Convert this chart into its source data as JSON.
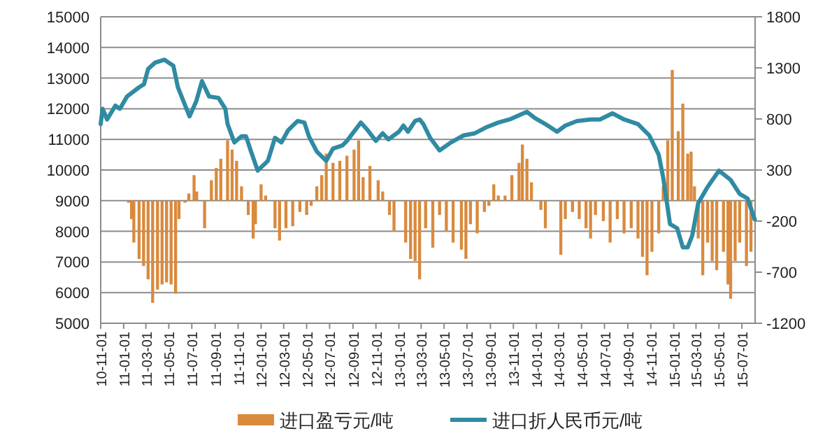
{
  "chart_data": {
    "type": "bar",
    "legend": "bottom",
    "grid": "y",
    "xlim": [
      "2010-11-01",
      "2015-08-05"
    ],
    "xticks": [
      {
        "value": "2010-11-01",
        "label": "10-11-01"
      },
      {
        "value": "2011-01-01",
        "label": "11-01-01"
      },
      {
        "value": "2011-03-01",
        "label": "11-03-01"
      },
      {
        "value": "2011-05-01",
        "label": "11-05-01"
      },
      {
        "value": "2011-07-01",
        "label": "11-07-01"
      },
      {
        "value": "2011-09-01",
        "label": "11-09-01"
      },
      {
        "value": "2011-11-01",
        "label": "11-11-01"
      },
      {
        "value": "2012-01-01",
        "label": "12-01-01"
      },
      {
        "value": "2012-03-01",
        "label": "12-03-01"
      },
      {
        "value": "2012-05-01",
        "label": "12-05-01"
      },
      {
        "value": "2012-07-01",
        "label": "12-07-01"
      },
      {
        "value": "2012-09-01",
        "label": "12-09-01"
      },
      {
        "value": "2012-11-01",
        "label": "12-11-01"
      },
      {
        "value": "2013-01-01",
        "label": "13-01-01"
      },
      {
        "value": "2013-03-01",
        "label": "13-03-01"
      },
      {
        "value": "2013-05-01",
        "label": "13-05-01"
      },
      {
        "value": "2013-07-01",
        "label": "13-07-01"
      },
      {
        "value": "2013-09-01",
        "label": "13-09-01"
      },
      {
        "value": "2013-11-01",
        "label": "13-11-01"
      },
      {
        "value": "2014-01-01",
        "label": "14-01-01"
      },
      {
        "value": "2014-03-01",
        "label": "14-03-01"
      },
      {
        "value": "2014-05-01",
        "label": "14-05-01"
      },
      {
        "value": "2014-07-01",
        "label": "14-07-01"
      },
      {
        "value": "2014-09-01",
        "label": "14-09-01"
      },
      {
        "value": "2014-11-01",
        "label": "14-11-01"
      },
      {
        "value": "2015-01-01",
        "label": "15-01-01"
      },
      {
        "value": "2015-03-01",
        "label": "15-03-01"
      },
      {
        "value": "2015-05-01",
        "label": "15-05-01"
      },
      {
        "value": "2015-07-01",
        "label": "15-07-01"
      }
    ],
    "ylim": [
      5000,
      15000
    ],
    "yticks": [
      5000,
      6000,
      7000,
      8000,
      9000,
      10000,
      11000,
      12000,
      13000,
      14000,
      15000
    ],
    "y2lim": [
      -1200,
      1800
    ],
    "y2ticks": [
      -1200,
      -700,
      -200,
      300,
      800,
      1300,
      1800
    ],
    "series": [
      {
        "name": "进口盈亏元/吨",
        "axis": "y2",
        "color": "#d98a3d",
        "x": [
          "2011-01-14",
          "2011-01-22",
          "2011-01-28",
          "2011-02-11",
          "2011-02-23",
          "2011-03-07",
          "2011-03-19",
          "2011-04-01",
          "2011-04-13",
          "2011-04-25",
          "2011-05-07",
          "2011-05-19",
          "2011-05-28",
          "2011-06-13",
          "2011-06-23",
          "2011-07-07",
          "2011-07-14",
          "2011-08-04",
          "2011-08-22",
          "2011-09-04",
          "2011-09-16",
          "2011-10-04",
          "2011-10-16",
          "2011-10-28",
          "2011-11-10",
          "2011-11-28",
          "2011-12-11",
          "2011-12-17",
          "2012-01-01",
          "2012-01-13",
          "2012-02-07",
          "2012-02-19",
          "2012-03-07",
          "2012-03-25",
          "2012-04-13",
          "2012-05-01",
          "2012-05-13",
          "2012-05-28",
          "2012-06-10",
          "2012-06-22",
          "2012-07-10",
          "2012-07-28",
          "2012-08-16",
          "2012-09-04",
          "2012-09-16",
          "2012-09-28",
          "2012-10-16",
          "2012-11-07",
          "2012-11-19",
          "2012-12-07",
          "2012-12-19",
          "2013-01-19",
          "2013-02-01",
          "2013-02-13",
          "2013-02-25",
          "2013-03-13",
          "2013-04-01",
          "2013-04-19",
          "2013-05-07",
          "2013-05-25",
          "2013-06-16",
          "2013-06-28",
          "2013-07-10",
          "2013-07-28",
          "2013-08-16",
          "2013-08-28",
          "2013-09-10",
          "2013-09-22",
          "2013-10-10",
          "2013-10-28",
          "2013-11-16",
          "2013-11-25",
          "2013-12-07",
          "2013-12-19",
          "2014-01-13",
          "2014-01-25",
          "2014-03-07",
          "2014-03-19",
          "2014-04-07",
          "2014-04-25",
          "2014-05-13",
          "2014-05-25",
          "2014-06-07",
          "2014-06-28",
          "2014-07-16",
          "2014-08-04",
          "2014-08-22",
          "2014-09-10",
          "2014-09-28",
          "2014-10-10",
          "2014-10-22",
          "2014-11-04",
          "2014-11-22",
          "2014-12-04",
          "2014-12-16",
          "2014-12-28",
          "2015-01-13",
          "2015-01-25",
          "2015-02-07",
          "2015-02-16",
          "2015-02-25",
          "2015-03-07",
          "2015-03-19",
          "2015-04-01",
          "2015-04-13",
          "2015-04-25",
          "2015-05-13",
          "2015-05-25",
          "2015-06-01",
          "2015-06-13",
          "2015-06-25",
          "2015-07-13",
          "2015-07-25"
        ],
        "values": [
          -20,
          -180,
          -410,
          -570,
          -640,
          -770,
          -1000,
          -870,
          -820,
          -800,
          -820,
          -910,
          -180,
          -20,
          70,
          250,
          90,
          -270,
          200,
          320,
          410,
          590,
          500,
          390,
          140,
          -140,
          -370,
          -230,
          160,
          50,
          -270,
          -390,
          -270,
          -250,
          -110,
          -140,
          -50,
          140,
          250,
          460,
          370,
          390,
          440,
          500,
          590,
          230,
          340,
          200,
          90,
          -140,
          -300,
          -410,
          -570,
          -590,
          -770,
          -270,
          -460,
          -140,
          -300,
          -410,
          -480,
          -570,
          -230,
          -320,
          -110,
          -50,
          160,
          50,
          50,
          250,
          370,
          550,
          410,
          180,
          -90,
          -270,
          -530,
          -180,
          -110,
          -180,
          -270,
          -370,
          -140,
          -200,
          -410,
          -180,
          -320,
          -270,
          -370,
          -550,
          -730,
          -500,
          -320,
          140,
          590,
          1280,
          680,
          950,
          460,
          480,
          140,
          -370,
          -730,
          -410,
          -590,
          -680,
          -500,
          -820,
          -960,
          -590,
          -410,
          -640,
          -500
        ]
      },
      {
        "name": "进口折人民币元/吨",
        "type": "line",
        "axis": "y",
        "color": "#2f8ba3",
        "line_style": "solid",
        "marker": "none",
        "x": [
          "2010-11-01",
          "2010-11-06",
          "2010-11-18",
          "2010-12-10",
          "2010-12-22",
          "2011-01-10",
          "2011-02-11",
          "2011-02-24",
          "2011-03-07",
          "2011-03-25",
          "2011-04-19",
          "2011-05-13",
          "2011-05-25",
          "2011-06-25",
          "2011-07-13",
          "2011-07-28",
          "2011-08-16",
          "2011-09-10",
          "2011-09-28",
          "2011-10-04",
          "2011-10-22",
          "2011-11-10",
          "2011-11-22",
          "2011-12-04",
          "2011-12-23",
          "2012-01-19",
          "2012-02-07",
          "2012-02-24",
          "2012-03-13",
          "2012-04-07",
          "2012-04-25",
          "2012-05-07",
          "2012-05-28",
          "2012-06-22",
          "2012-07-10",
          "2012-08-04",
          "2012-08-16",
          "2012-09-22",
          "2012-10-10",
          "2012-11-01",
          "2012-11-19",
          "2012-12-04",
          "2013-01-01",
          "2013-01-13",
          "2013-01-25",
          "2013-02-13",
          "2013-02-25",
          "2013-03-07",
          "2013-03-25",
          "2013-04-19",
          "2013-05-19",
          "2013-06-22",
          "2013-07-22",
          "2013-08-22",
          "2013-09-22",
          "2013-10-22",
          "2013-12-07",
          "2013-12-28",
          "2014-01-25",
          "2014-02-25",
          "2014-03-19",
          "2014-04-19",
          "2014-05-25",
          "2014-06-19",
          "2014-07-22",
          "2014-08-22",
          "2014-09-28",
          "2014-10-28",
          "2014-11-22",
          "2014-12-04",
          "2014-12-22",
          "2015-01-10",
          "2015-01-25",
          "2015-02-07",
          "2015-02-19",
          "2015-03-07",
          "2015-04-01",
          "2015-05-01",
          "2015-06-01",
          "2015-06-25",
          "2015-07-16",
          "2015-08-04"
        ],
        "values": [
          11500,
          12000,
          11650,
          12100,
          12000,
          12400,
          12700,
          12800,
          13300,
          13500,
          13600,
          13400,
          12700,
          11750,
          12250,
          12900,
          12400,
          12350,
          12000,
          11500,
          10900,
          11100,
          11100,
          10650,
          9980,
          10300,
          11050,
          10900,
          11300,
          11600,
          11550,
          11100,
          10600,
          10300,
          10700,
          10800,
          10950,
          11550,
          11300,
          10950,
          11200,
          11000,
          11250,
          11450,
          11250,
          11600,
          11650,
          11500,
          11050,
          10640,
          10900,
          11130,
          11200,
          11400,
          11550,
          11650,
          11900,
          11700,
          11500,
          11250,
          11450,
          11600,
          11650,
          11650,
          11850,
          11650,
          11500,
          11130,
          10500,
          9750,
          8240,
          8100,
          7480,
          7480,
          7860,
          8920,
          9450,
          9980,
          9680,
          9220,
          9070,
          8390
        ]
      }
    ]
  }
}
